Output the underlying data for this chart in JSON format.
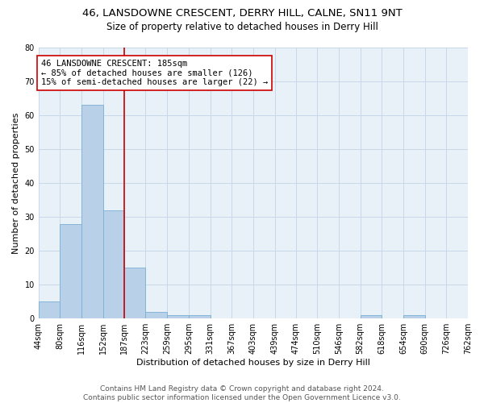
{
  "title1": "46, LANSDOWNE CRESCENT, DERRY HILL, CALNE, SN11 9NT",
  "title2": "Size of property relative to detached houses in Derry Hill",
  "xlabel": "Distribution of detached houses by size in Derry Hill",
  "ylabel": "Number of detached properties",
  "bar_values": [
    5,
    28,
    63,
    32,
    15,
    2,
    1,
    1,
    0,
    0,
    0,
    0,
    0,
    0,
    0,
    1,
    0,
    1,
    0,
    0
  ],
  "bin_labels": [
    "44sqm",
    "80sqm",
    "116sqm",
    "152sqm",
    "187sqm",
    "223sqm",
    "259sqm",
    "295sqm",
    "331sqm",
    "367sqm",
    "403sqm",
    "439sqm",
    "474sqm",
    "510sqm",
    "546sqm",
    "582sqm",
    "618sqm",
    "654sqm",
    "690sqm",
    "726sqm",
    "762sqm"
  ],
  "bin_edges": [
    44,
    80,
    116,
    152,
    187,
    223,
    259,
    295,
    331,
    367,
    403,
    439,
    474,
    510,
    546,
    582,
    618,
    654,
    690,
    726,
    762
  ],
  "bar_color": "#b8d0e8",
  "bar_edge_color": "#7aafd4",
  "vline_x": 187,
  "vline_color": "#cc0000",
  "annotation_text": "46 LANSDOWNE CRESCENT: 185sqm\n← 85% of detached houses are smaller (126)\n15% of semi-detached houses are larger (22) →",
  "annotation_box_color": "#ffffff",
  "annotation_box_edge": "#cc0000",
  "ylim": [
    0,
    80
  ],
  "yticks": [
    0,
    10,
    20,
    30,
    40,
    50,
    60,
    70,
    80
  ],
  "grid_color": "#c8d8e8",
  "bg_color": "#e8f0f8",
  "footnote": "Contains HM Land Registry data © Crown copyright and database right 2024.\nContains public sector information licensed under the Open Government Licence v3.0.",
  "title1_fontsize": 9.5,
  "title2_fontsize": 8.5,
  "xlabel_fontsize": 8,
  "ylabel_fontsize": 8,
  "tick_fontsize": 7,
  "annot_fontsize": 7.5,
  "footnote_fontsize": 6.5
}
